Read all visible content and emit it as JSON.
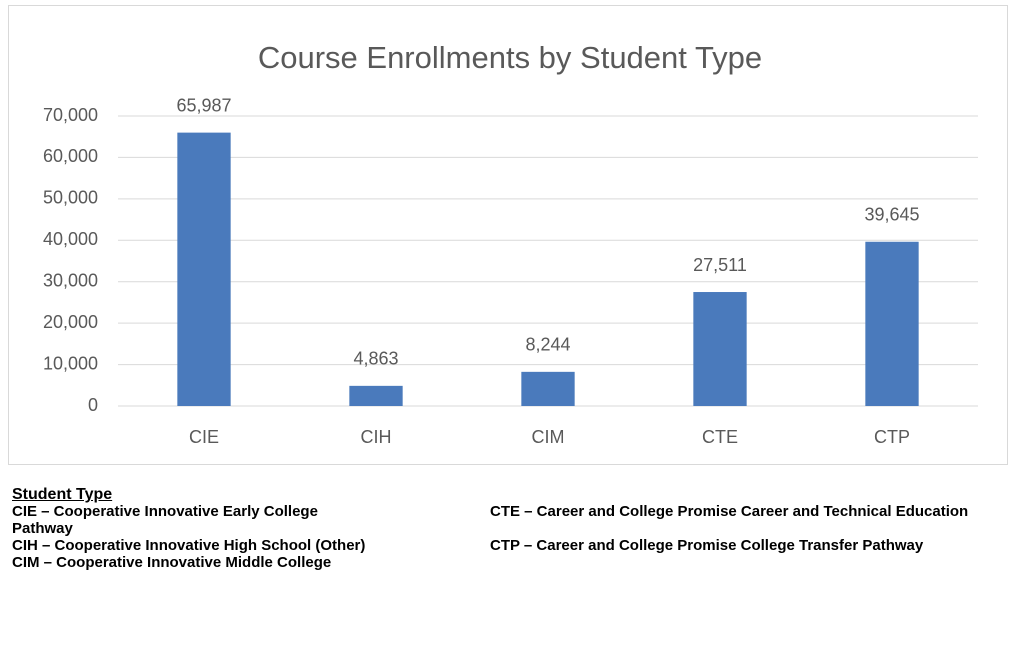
{
  "chart_data": {
    "type": "bar",
    "title": "Course Enrollments by Student Type",
    "categories": [
      "CIE",
      "CIH",
      "CIM",
      "CTE",
      "CTP"
    ],
    "values": [
      65987,
      4863,
      8244,
      27511,
      39645
    ],
    "value_labels": [
      "65,987",
      "4,863",
      "8,244",
      "27,511",
      "39,645"
    ],
    "color": "#4a7abc",
    "ylim": [
      0,
      70000
    ],
    "yticks": [
      0,
      {
        "value": 10000,
        "label": "10,000"
      },
      {
        "value": 20000,
        "label": "20,000"
      },
      {
        "value": 30000,
        "label": "30,000"
      },
      {
        "value": 40000,
        "label": "40,000"
      },
      {
        "value": 50000,
        "label": "50,000"
      },
      {
        "value": 60000,
        "label": "60,000"
      },
      {
        "value": 70000,
        "label": "70,000"
      }
    ],
    "grid": true
  },
  "notes": {
    "title": "Student Type",
    "items": [
      "CIE – Cooperative Innovative Early College",
      "CTE –  Career and College Promise Career and Technical Education Pathway",
      "CIH – Cooperative Innovative High School (Other)",
      "CTP – Career and College Promise College Transfer Pathway",
      "CIM – Cooperative Innovative Middle College"
    ]
  }
}
